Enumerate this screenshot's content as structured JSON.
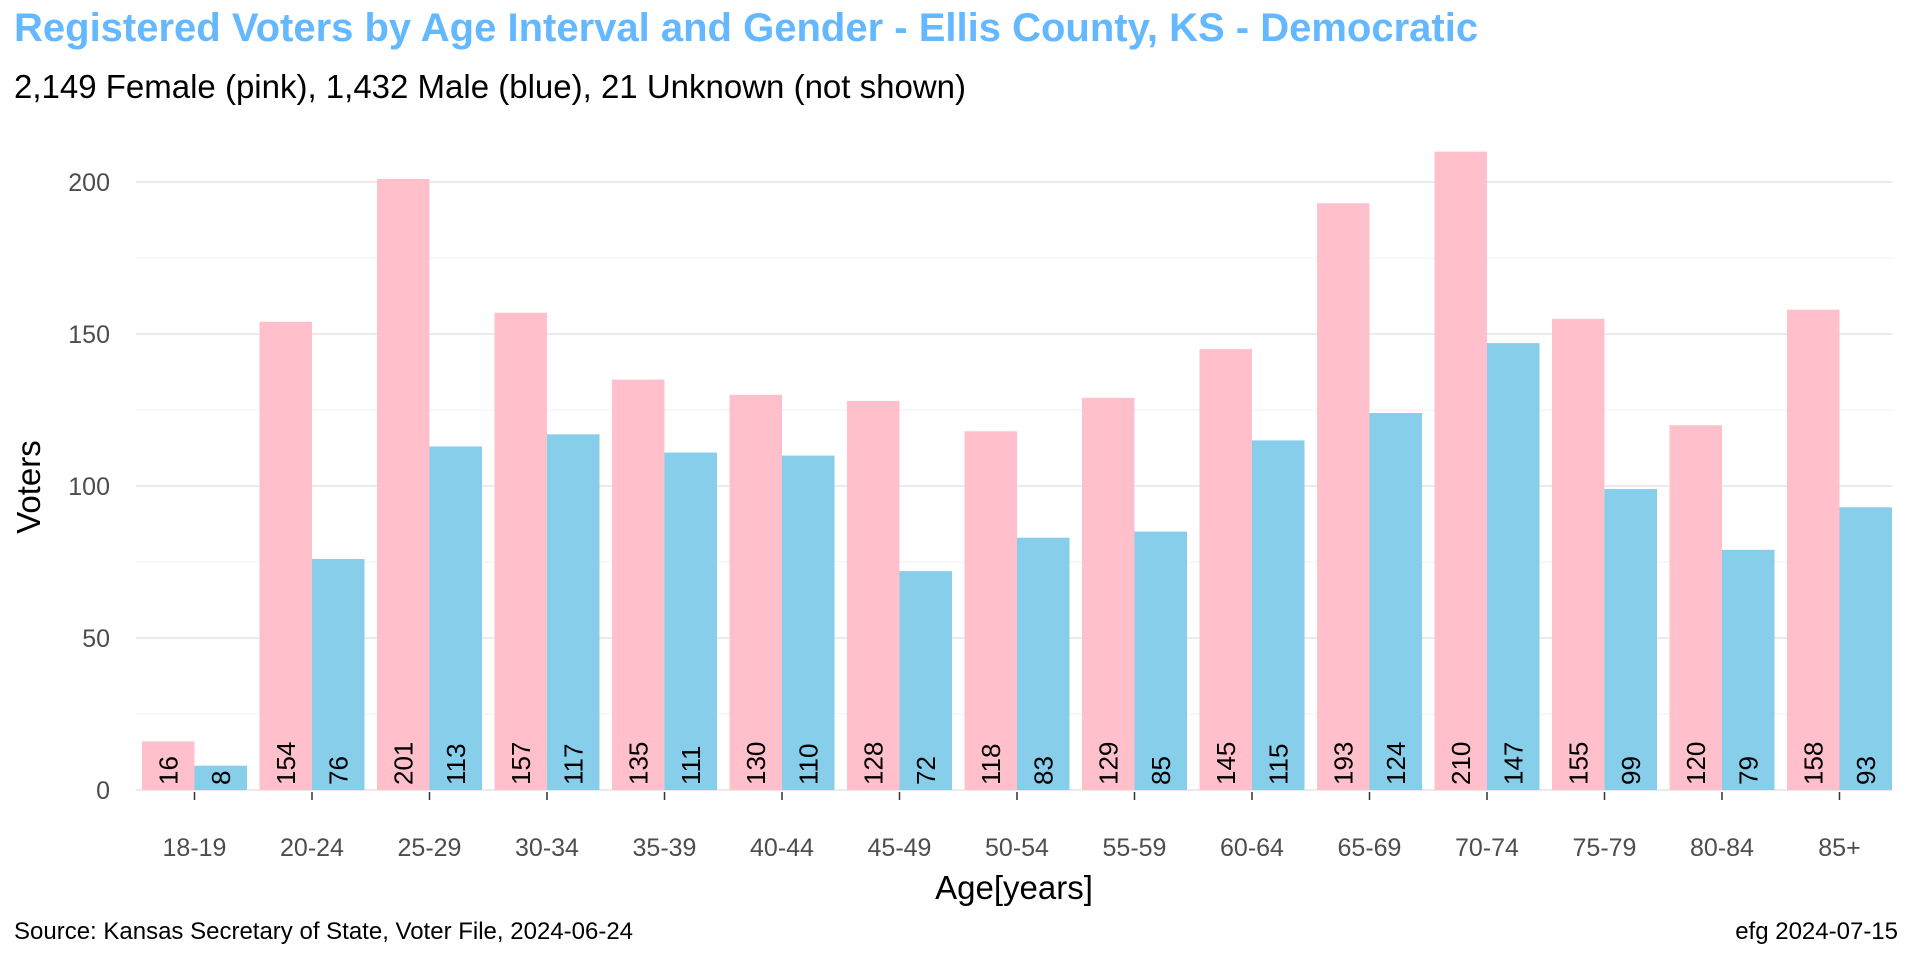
{
  "title": "Registered Voters by Age Interval and Gender - Ellis County, KS - Democratic",
  "subtitle": "2,149 Female (pink),  1,432 Male (blue),  21 Unknown (not shown)",
  "source": "Source: Kansas Secretary of State, Voter File, 2024-06-24",
  "credit": "efg 2024-07-15",
  "colors": {
    "title": "#63b8ff",
    "female": "#ffc0cb",
    "male": "#87ceeb",
    "grid_major": "#ebebeb",
    "grid_minor": "#f4f4f4",
    "tick_text": "#4d4d4d"
  },
  "chart_data": {
    "type": "bar",
    "xlabel": "Age[years]",
    "ylabel": "Voters",
    "ylim": [
      0,
      210
    ],
    "yticks": [
      0,
      50,
      100,
      150,
      200
    ],
    "grid": true,
    "legend": "none",
    "categories": [
      "18-19",
      "20-24",
      "25-29",
      "30-34",
      "35-39",
      "40-44",
      "45-49",
      "50-54",
      "55-59",
      "60-64",
      "65-69",
      "70-74",
      "75-79",
      "80-84",
      "85+"
    ],
    "series": [
      {
        "color": "#ffc0cb",
        "values": [
          16,
          154,
          201,
          157,
          135,
          130,
          128,
          118,
          129,
          145,
          193,
          210,
          155,
          120,
          158
        ]
      },
      {
        "color": "#87ceeb",
        "values": [
          8,
          76,
          113,
          117,
          111,
          110,
          72,
          83,
          85,
          115,
          124,
          147,
          99,
          79,
          93
        ]
      }
    ]
  }
}
